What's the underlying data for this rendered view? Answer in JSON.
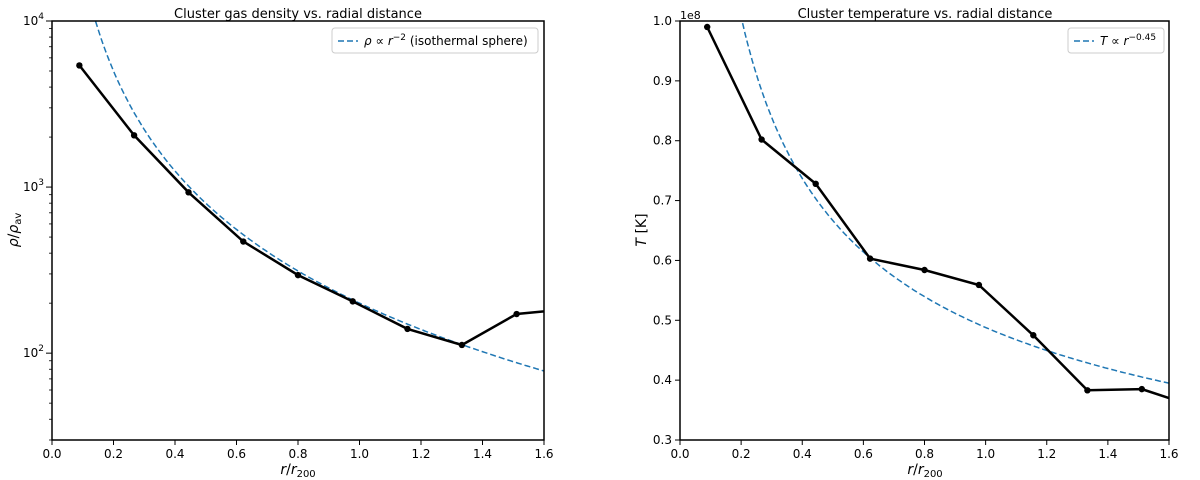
{
  "chart_data": [
    {
      "type": "line",
      "title": "Cluster gas density vs. radial distance",
      "xlabel": "r/r_200",
      "ylabel": "ρ/ρ_av",
      "yscale": "log",
      "xlim": [
        0.0,
        1.6
      ],
      "ylim": [
        30,
        10000
      ],
      "xticks": [
        "0.0",
        "0.2",
        "0.4",
        "0.6",
        "0.8",
        "1.0",
        "1.2",
        "1.4",
        "1.6"
      ],
      "yticks": [
        "10^2",
        "10^3",
        "10^4"
      ],
      "legend": {
        "position": "top-right",
        "entries": [
          "ρ ∝ r^-2 (isothermal sphere)"
        ]
      },
      "grid": false,
      "series": [
        {
          "style": "solid-black-markers",
          "color": "#000000",
          "x": [
            0.089,
            0.267,
            0.444,
            0.622,
            0.8,
            0.978,
            1.156,
            1.333,
            1.511,
            1.689
          ],
          "y": [
            5400,
            2050,
            930,
            470,
            295,
            205,
            140,
            112,
            172,
            185
          ]
        },
        {
          "name": "ρ ∝ r^-2 (isothermal sphere)",
          "style": "dashed",
          "color": "#1f77b4",
          "formula": "y = 200 * x^-2",
          "x_range": [
            0.05,
            1.6
          ]
        }
      ]
    },
    {
      "type": "line",
      "title": "Cluster temperature vs. radial distance",
      "xlabel": "r/r_200",
      "ylabel": "T [K]",
      "y_offset_label": "1e8",
      "xlim": [
        0.0,
        1.6
      ],
      "ylim": [
        0.3,
        1.0
      ],
      "xticks": [
        "0.0",
        "0.2",
        "0.4",
        "0.6",
        "0.8",
        "1.0",
        "1.2",
        "1.4",
        "1.6"
      ],
      "yticks": [
        "0.3",
        "0.4",
        "0.5",
        "0.6",
        "0.7",
        "0.8",
        "0.9",
        "1.0"
      ],
      "legend": {
        "position": "top-right",
        "entries": [
          "T ∝ r^-0.45"
        ]
      },
      "grid": false,
      "series": [
        {
          "style": "solid-black-markers",
          "color": "#000000",
          "x": [
            0.089,
            0.267,
            0.444,
            0.622,
            0.8,
            0.978,
            1.156,
            1.333,
            1.511,
            1.689
          ],
          "y": [
            0.99,
            0.802,
            0.728,
            0.603,
            0.584,
            0.559,
            0.475,
            0.383,
            0.385,
            0.355
          ]
        },
        {
          "name": "T ∝ r^-0.45",
          "style": "dashed",
          "color": "#1f77b4",
          "formula": "y = 0.488 * x^-0.45",
          "x_range": [
            0.05,
            1.6
          ]
        }
      ]
    }
  ]
}
